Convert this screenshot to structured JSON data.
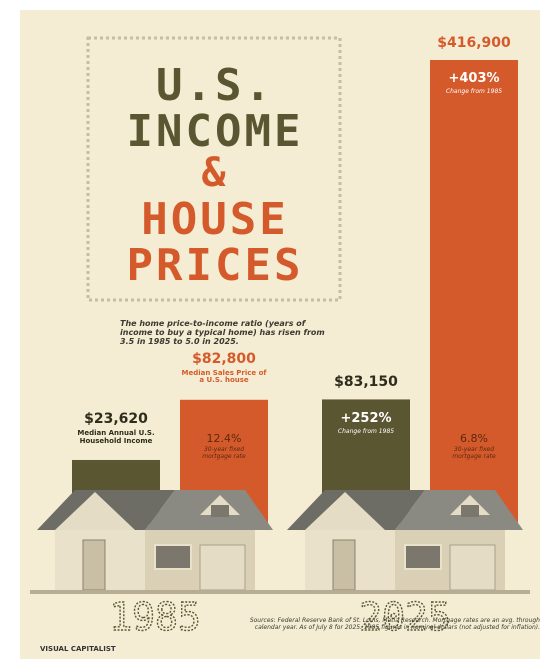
{
  "chart_data": {
    "type": "bar",
    "title_lines": [
      "U.S.",
      "INCOME",
      "&",
      "HOUSE",
      "PRICES"
    ],
    "subtitle": "The home price-to-income ratio (years of income to buy a typical home) has risen from 3.5 in 1985 to 5.0 in 2025.",
    "categories": [
      "1985",
      "2025"
    ],
    "series": [
      {
        "name": "Median Annual U.S. Household Income",
        "color": "#5b5632",
        "values": [
          23620,
          83150
        ],
        "value_labels": [
          "$23,620",
          "$83,150"
        ]
      },
      {
        "name": "Median Sales Price of a U.S. house",
        "color": "#d55a2b",
        "values": [
          82800,
          416900
        ],
        "value_labels": [
          "$82,800",
          "$416,900"
        ]
      }
    ],
    "annotations": {
      "change_label": "Change from 1985",
      "income_change_2025": "+252%",
      "price_change_2025": "+403%",
      "mortgage_label": "30-year fixed mortgage rate",
      "mortgage_1985": "12.4%",
      "mortgage_2025": "6.8%"
    },
    "source": "Sources: Federal Reserve Bank of St. Louis, Matia Research. Mortgage rates are an avg. through calendar year. As of July 8 for 2025. 1985 figures in nominal dollars (not adjusted for inflation).",
    "logo": "VISUAL CAPITALIST"
  }
}
